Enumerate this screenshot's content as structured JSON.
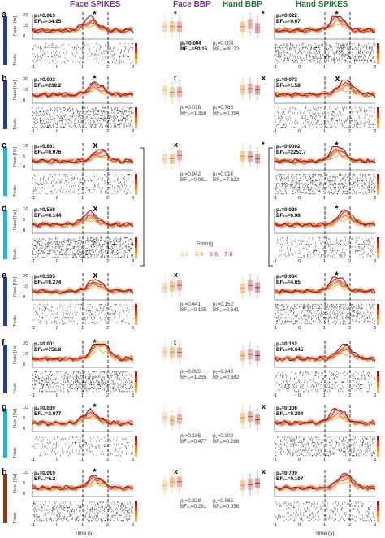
{
  "headers": {
    "face_spikes": "Face SPIKES",
    "face_bbp": "Face BBP",
    "hand_bbp": "Hand BBP",
    "hand_spikes": "Hand SPIKES"
  },
  "panel_labels": [
    "a",
    "b",
    "c",
    "d",
    "e",
    "f",
    "g",
    "h"
  ],
  "axis": {
    "rate_label": "Rate [Hz]",
    "trials_label": "Trials",
    "time_label": "Time (s)",
    "time_ticks": [
      "-1",
      "0",
      "1",
      "2",
      "3"
    ]
  },
  "rate_ticks": {
    "a": [
      "20",
      "10",
      "0"
    ],
    "b": [
      "20",
      "10",
      "0"
    ],
    "c": [
      "10",
      "5",
      "0"
    ],
    "d": [
      "10",
      "5",
      "0"
    ],
    "e": [
      "20",
      "10",
      "0"
    ],
    "f": [
      "20",
      "10",
      "0"
    ],
    "g": [
      "10",
      "5",
      "0"
    ],
    "h": [
      "10",
      "5",
      "0"
    ]
  },
  "legend": {
    "title": "Rating",
    "items": [
      {
        "label": "1-2",
        "color": "#f4a340"
      },
      {
        "label": "3-4",
        "color": "#e8831e"
      },
      {
        "label": "5-6",
        "color": "#d63a2a"
      },
      {
        "label": "7-8",
        "color": "#8f1b1b"
      }
    ]
  },
  "stats": {
    "a": {
      "face_spikes": [
        "p₁=0.013",
        "BF₁₀=34.95"
      ],
      "face_bbp": [
        "p₁=0.004",
        "BF₁₀=50.15"
      ],
      "hand_bbp": [
        "p₁=0.003",
        "BF₁₀=89.72"
      ],
      "hand_spikes": [
        "p₁=0.022",
        "BF₁₀=9.07"
      ]
    },
    "b": {
      "face_spikes": [
        "p₁=0.002",
        "BF₁₀=238.2"
      ],
      "face_bbp": [
        "p₁=0.078",
        "BF₁₀=1.358"
      ],
      "hand_bbp": [
        "p₁=0.768",
        "BF₁₀=0.094"
      ],
      "hand_spikes": [
        "p₁=0.073",
        "BF₁₀=1.58"
      ]
    },
    "c": {
      "face_spikes": [
        "p₁=0.861",
        "BF₁₀=0.076"
      ],
      "face_bbp": [
        "p₁=0.942",
        "BF₁₀=0.061"
      ],
      "hand_bbp": [
        "p₁=0.014",
        "BF₁₀=7.322"
      ],
      "hand_spikes": [
        "p₁=0.0002",
        "BF₁₀=2253.7"
      ]
    },
    "d": {
      "face_spikes": [
        "p₁=0.568",
        "BF₁₀=0.144"
      ],
      "hand_spikes": [
        "p₁=0.020",
        "BF₁₀=6.98"
      ]
    },
    "e": {
      "face_spikes": [
        "p₁=0.335",
        "BF₁₀=0.274"
      ],
      "face_bbp": [
        "p₁=0.441",
        "BF₁₀=0.195"
      ],
      "hand_bbp": [
        "p₁=0.152",
        "BF₁₀=0.641"
      ],
      "hand_spikes": [
        "p₁=0.034",
        "BF₁₀=4.65"
      ]
    },
    "f": {
      "face_spikes": [
        "p₁=0.001",
        "BF₁₀=756.8"
      ],
      "face_bbp": [
        "p₁=0.085",
        "BF₁₀=1.235"
      ],
      "hand_bbp": [
        "p₁=0.242",
        "BF₁₀=0.382"
      ],
      "hand_spikes": [
        "p₁=0.162",
        "BF₁₀=0.645"
      ]
    },
    "g": {
      "face_spikes": [
        "p₁=0.039",
        "BF₁₀=2.977"
      ],
      "face_bbp": [
        "p₁=0.185",
        "BF₁₀=0.477"
      ],
      "hand_bbp": [
        "p₁=0.302",
        "BF₁₀=0.288"
      ],
      "hand_spikes": [
        "p₁=0.306",
        "BF₁₀=0.294"
      ]
    },
    "h": {
      "face_spikes": [
        "p₁=0.019",
        "BF₁₀=6.2"
      ],
      "face_bbp": [
        "p₁=0.328",
        "BF₁₀=0.261"
      ],
      "hand_bbp": [
        "p₁=0.965",
        "BF₁₀=0.056"
      ],
      "hand_spikes": [
        "p₁=0.709",
        "BF₁₀=0.107"
      ]
    }
  },
  "colors": {
    "orange": "#e8831e",
    "light_orange": "#f4b36a",
    "red": "#d63a2a",
    "dark_red": "#8f1b1b",
    "purple": "#7b2f8e",
    "green": "#1e7a2e",
    "unit_dark_blue": "#2b3a8f",
    "unit_cyan": "#2ab0d6",
    "unit_brown": "#8b3a1a"
  }
}
